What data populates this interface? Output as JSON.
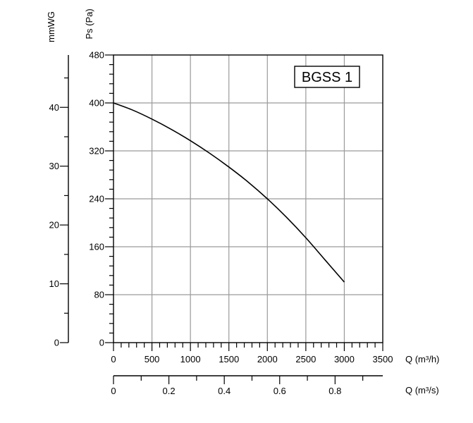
{
  "chart_data": {
    "type": "line",
    "title": "BGSS 1",
    "x": {
      "label": "Q (m³/h)",
      "lim": [
        0,
        3500
      ],
      "ticks": [
        0,
        500,
        1000,
        1500,
        2000,
        2500,
        3000,
        3500
      ],
      "tick_labels": [
        "0",
        "500",
        "1000",
        "1500",
        "2000",
        "2500",
        "3000",
        "3500"
      ],
      "minor_step": 100
    },
    "x2": {
      "label": "Q (m³/s)",
      "lim": [
        0,
        0.9722
      ],
      "ticks": [
        0,
        0.2,
        0.4,
        0.6,
        0.8
      ],
      "tick_labels": [
        "0",
        "0.2",
        "0.4",
        "0.6",
        "0.8"
      ],
      "minor_ticks": [
        0.1,
        0.3,
        0.5,
        0.7,
        0.9
      ]
    },
    "y": {
      "label": "Ps (Pa)",
      "lim": [
        0,
        480
      ],
      "ticks": [
        0,
        80,
        160,
        240,
        320,
        400,
        480
      ],
      "tick_labels": [
        "0",
        "80",
        "160",
        "240",
        "320",
        "400",
        "480"
      ],
      "minor_step": 16
    },
    "y2": {
      "label": "mmWG",
      "lim": [
        0,
        48.9
      ],
      "ticks": [
        0,
        10,
        20,
        30,
        40
      ],
      "tick_labels": [
        "0",
        "10",
        "20",
        "30",
        "40"
      ],
      "minor_ticks": [
        5,
        15,
        25,
        35,
        45
      ]
    },
    "grid": true,
    "series": [
      {
        "x": [
          0,
          250,
          500,
          750,
          1000,
          1250,
          1500,
          1750,
          2000,
          2250,
          2500,
          2750,
          3000
        ],
        "y": [
          400,
          388,
          373,
          356,
          337,
          316,
          293,
          268,
          240,
          209,
          175,
          138,
          101
        ]
      }
    ]
  }
}
